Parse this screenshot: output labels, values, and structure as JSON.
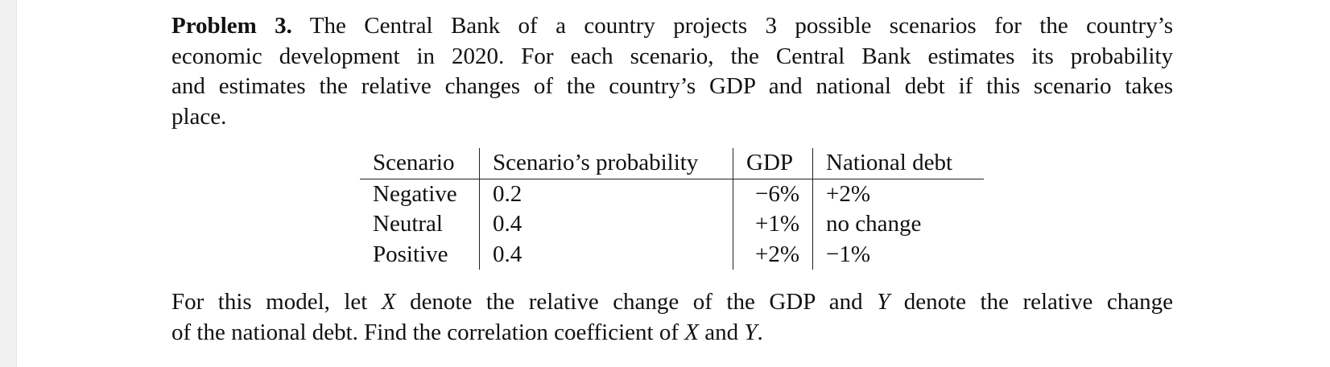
{
  "problem": {
    "label": "Problem 3.",
    "intro_lines": [
      "The Central Bank of a country projects 3 possible scenarios for the country’s",
      "economic development in 2020.  For each scenario, the Central Bank estimates its probability",
      "and estimates the relative changes of the country’s GDP and national debt if this scenario takes",
      "place."
    ],
    "table": {
      "header": [
        "Scenario",
        "Scenario’s probability",
        "GDP",
        "National debt"
      ],
      "rows": [
        [
          "Negative",
          "0.2",
          "−6%",
          "+2%"
        ],
        [
          "Neutral",
          "0.4",
          "+1%",
          "no change"
        ],
        [
          "Positive",
          "0.4",
          "+2%",
          "−1%"
        ]
      ]
    },
    "closing_lines": [
      [
        "For this model, let ",
        "X",
        " denote the relative change of the GDP and ",
        "Y",
        " denote the relative change"
      ],
      [
        "of the national debt. Find the correlation coefficient of ",
        "X",
        " and ",
        "Y",
        "."
      ]
    ]
  }
}
